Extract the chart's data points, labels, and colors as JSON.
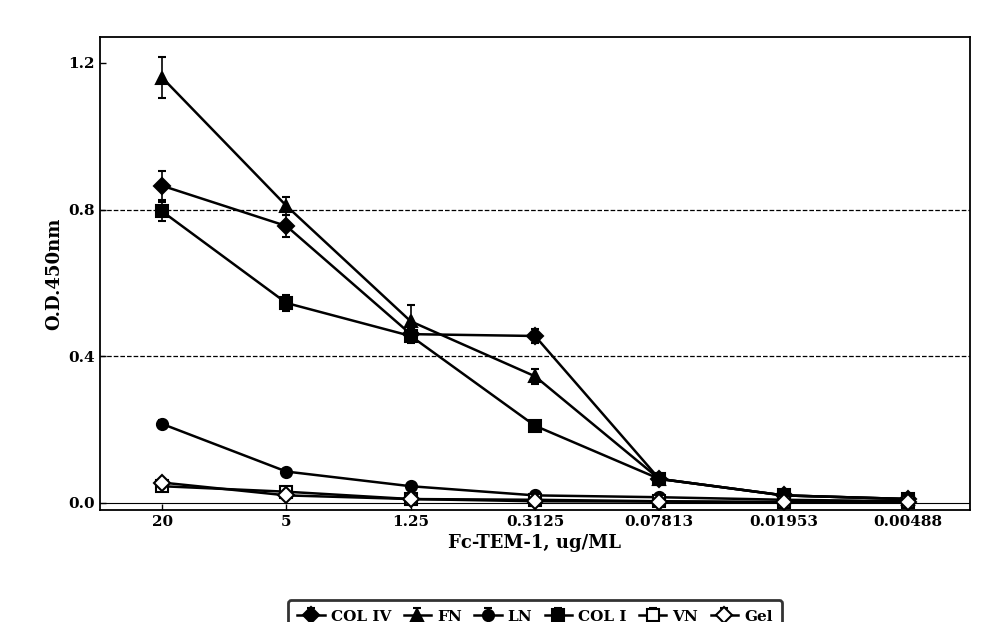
{
  "x_labels": [
    "20",
    "5",
    "1.25",
    "0.3125",
    "0.07813",
    "0.01953",
    "0.00488"
  ],
  "series": [
    {
      "name": "COL IV",
      "marker": "D",
      "fillstyle": "full",
      "y": [
        0.865,
        0.755,
        0.46,
        0.455,
        0.065,
        0.02,
        0.01
      ],
      "yerr": [
        0.04,
        0.03,
        0.02,
        0.02,
        0.008,
        0.004,
        0.002
      ]
    },
    {
      "name": "FN",
      "marker": "^",
      "fillstyle": "full",
      "y": [
        1.16,
        0.81,
        0.495,
        0.345,
        0.065,
        0.02,
        0.01
      ],
      "yerr": [
        0.055,
        0.025,
        0.045,
        0.02,
        0.008,
        0.004,
        0.002
      ]
    },
    {
      "name": "LN",
      "marker": "o",
      "fillstyle": "full",
      "y": [
        0.215,
        0.085,
        0.045,
        0.02,
        0.015,
        0.008,
        0.004
      ],
      "yerr": [
        0.012,
        0.007,
        0.004,
        0.003,
        0.002,
        0.001,
        0.001
      ]
    },
    {
      "name": "COL I",
      "marker": "s",
      "fillstyle": "full",
      "y": [
        0.795,
        0.545,
        0.455,
        0.21,
        0.065,
        0.02,
        0.01
      ],
      "yerr": [
        0.025,
        0.022,
        0.018,
        0.014,
        0.008,
        0.004,
        0.002
      ]
    },
    {
      "name": "VN",
      "marker": "s",
      "fillstyle": "none",
      "y": [
        0.045,
        0.03,
        0.01,
        0.008,
        0.004,
        0.002,
        0.001
      ],
      "yerr": [
        0.004,
        0.003,
        0.002,
        0.001,
        0.001,
        0.001,
        0.0005
      ]
    },
    {
      "name": "Gel",
      "marker": "D",
      "fillstyle": "none",
      "y": [
        0.055,
        0.02,
        0.01,
        0.004,
        0.003,
        0.001,
        0.001
      ],
      "yerr": [
        0.005,
        0.002,
        0.002,
        0.001,
        0.001,
        0.0005,
        0.0005
      ]
    }
  ],
  "xlabel": "Fc-TEM-1, ug/ML",
  "ylabel": "O.D.450nm",
  "ylim": [
    -0.02,
    1.27
  ],
  "yticks": [
    0.0,
    0.4,
    0.8,
    1.2
  ],
  "grid_yticks": [
    0.4,
    0.8
  ],
  "background_color": "#ffffff",
  "linewidth": 1.8,
  "markersize": 8,
  "legend_fontsize": 11,
  "axis_fontsize": 13,
  "tick_fontsize": 11
}
